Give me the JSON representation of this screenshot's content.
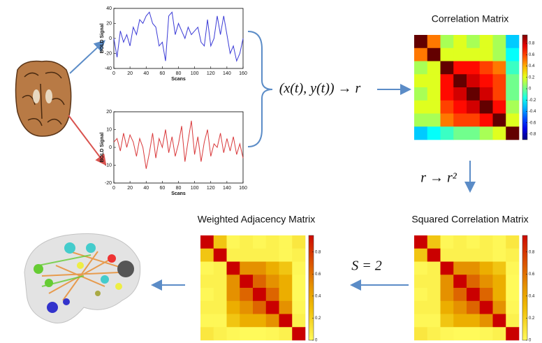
{
  "chart_data": [
    {
      "type": "line",
      "color": "#3a3ad6",
      "xlabel": "Scans",
      "ylabel": "BOLD Signal",
      "x": [
        0,
        4,
        8,
        12,
        16,
        20,
        24,
        28,
        32,
        36,
        40,
        44,
        48,
        52,
        56,
        60,
        64,
        68,
        72,
        76,
        80,
        84,
        88,
        92,
        96,
        100,
        104,
        108,
        112,
        116,
        120,
        124,
        128,
        132,
        136,
        140,
        144,
        148,
        152,
        156,
        160
      ],
      "values": [
        0,
        -25,
        10,
        -5,
        5,
        -10,
        15,
        5,
        25,
        20,
        30,
        35,
        20,
        15,
        -10,
        -5,
        -30,
        30,
        35,
        5,
        20,
        10,
        0,
        15,
        5,
        10,
        15,
        -5,
        -10,
        25,
        -10,
        0,
        30,
        5,
        30,
        5,
        -20,
        -10,
        -30,
        -20,
        0
      ],
      "xlim": [
        0,
        160
      ],
      "xticks": [
        0,
        20,
        40,
        60,
        80,
        100,
        120,
        140,
        160
      ],
      "ylim": [
        -40,
        40
      ],
      "yticks": [
        -40,
        -20,
        0,
        20,
        40
      ]
    },
    {
      "type": "line",
      "color": "#d9383a",
      "xlabel": "Scans",
      "ylabel": "BOLD Signal",
      "x": [
        0,
        4,
        8,
        12,
        16,
        20,
        24,
        28,
        32,
        36,
        40,
        44,
        48,
        52,
        56,
        60,
        64,
        68,
        72,
        76,
        80,
        84,
        88,
        92,
        96,
        100,
        104,
        108,
        112,
        116,
        120,
        124,
        128,
        132,
        136,
        140,
        144,
        148,
        152,
        156,
        160
      ],
      "values": [
        3,
        5,
        -2,
        8,
        0,
        7,
        3,
        -5,
        5,
        0,
        -12,
        -3,
        8,
        -6,
        5,
        0,
        10,
        -3,
        6,
        -5,
        2,
        12,
        -8,
        4,
        15,
        -4,
        6,
        -8,
        3,
        10,
        -5,
        2,
        0,
        8,
        -3,
        5,
        -2,
        6,
        -4,
        2,
        -6
      ],
      "xlim": [
        0,
        160
      ],
      "xticks": [
        0,
        20,
        40,
        60,
        80,
        100,
        120,
        140,
        160
      ],
      "ylim": [
        -20,
        20
      ],
      "yticks": [
        -20,
        -10,
        0,
        10,
        20
      ]
    },
    {
      "type": "heatmap",
      "title": "Correlation Matrix",
      "colormap": "jet",
      "clim": [
        -0.9,
        0.95
      ],
      "cticks": [
        0.8,
        0.6,
        0.4,
        0.2,
        0,
        -0.2,
        -0.4,
        -0.6,
        -0.8
      ],
      "values": [
        [
          1,
          0.5,
          0.1,
          0.2,
          0.1,
          0.2,
          0.1,
          -0.3
        ],
        [
          0.5,
          1,
          0.2,
          0.2,
          0.2,
          0.2,
          0.1,
          -0.2
        ],
        [
          0.1,
          0.2,
          1,
          0.7,
          0.7,
          0.6,
          0.5,
          -0.1
        ],
        [
          0.2,
          0.2,
          0.7,
          1,
          0.8,
          0.7,
          0.6,
          0
        ],
        [
          0.1,
          0.2,
          0.7,
          0.8,
          1,
          0.8,
          0.6,
          0
        ],
        [
          0.2,
          0.2,
          0.6,
          0.7,
          0.8,
          1,
          0.7,
          0.1
        ],
        [
          0.1,
          0.1,
          0.5,
          0.6,
          0.6,
          0.7,
          1,
          0.2
        ],
        [
          -0.3,
          -0.2,
          -0.1,
          0,
          0,
          0.1,
          0.2,
          1
        ]
      ]
    },
    {
      "type": "heatmap",
      "title": "Squared Correlation Matrix",
      "colormap": "yellow-red",
      "clim": [
        0,
        0.95
      ],
      "cticks": [
        0.8,
        0.6,
        0.4,
        0.2,
        0
      ],
      "values": [
        [
          1,
          0.25,
          0.01,
          0.04,
          0.01,
          0.04,
          0.01,
          0.09
        ],
        [
          0.25,
          1,
          0.04,
          0.04,
          0.04,
          0.04,
          0.01,
          0.04
        ],
        [
          0.01,
          0.04,
          1,
          0.49,
          0.49,
          0.36,
          0.25,
          0.01
        ],
        [
          0.04,
          0.04,
          0.49,
          1,
          0.64,
          0.49,
          0.36,
          0
        ],
        [
          0.01,
          0.04,
          0.49,
          0.64,
          1,
          0.64,
          0.36,
          0
        ],
        [
          0.04,
          0.04,
          0.36,
          0.49,
          0.64,
          1,
          0.49,
          0.01
        ],
        [
          0.01,
          0.01,
          0.25,
          0.36,
          0.36,
          0.49,
          1,
          0.04
        ],
        [
          0.09,
          0.04,
          0.01,
          0,
          0,
          0.01,
          0.04,
          1
        ]
      ]
    },
    {
      "type": "heatmap",
      "title": "Weighted Adjacency Matrix",
      "colormap": "yellow-red",
      "clim": [
        0,
        0.95
      ],
      "cticks": [
        0.8,
        0.6,
        0.4,
        0.2,
        0
      ],
      "values": [
        [
          1,
          0.25,
          0.01,
          0.04,
          0.01,
          0.04,
          0.01,
          0.09
        ],
        [
          0.25,
          1,
          0.04,
          0.04,
          0.04,
          0.04,
          0.01,
          0.04
        ],
        [
          0.01,
          0.04,
          1,
          0.49,
          0.49,
          0.36,
          0.25,
          0.01
        ],
        [
          0.04,
          0.04,
          0.49,
          1,
          0.64,
          0.49,
          0.36,
          0
        ],
        [
          0.01,
          0.04,
          0.49,
          0.64,
          1,
          0.64,
          0.36,
          0
        ],
        [
          0.04,
          0.04,
          0.36,
          0.49,
          0.64,
          1,
          0.49,
          0.01
        ],
        [
          0.01,
          0.01,
          0.25,
          0.36,
          0.36,
          0.49,
          1,
          0.04
        ],
        [
          0.09,
          0.04,
          0.01,
          0,
          0,
          0.01,
          0.04,
          1
        ]
      ]
    }
  ],
  "annotations": {
    "correlation": "(x(t), y(t)) → r",
    "square": "r → r²",
    "power": "S = 2"
  }
}
